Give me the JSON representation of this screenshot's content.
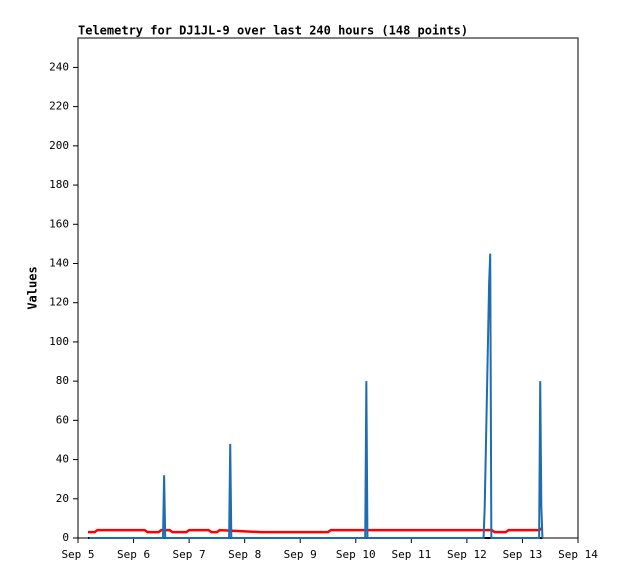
{
  "chart_data": {
    "type": "line",
    "title": "Telemetry for DJ1JL-9 over last 240 hours (148 points)",
    "ylabel": "Values",
    "xlim": [
      5,
      14
    ],
    "ylim": [
      0,
      255
    ],
    "xticks": [
      {
        "value": 5,
        "label": "Sep 5"
      },
      {
        "value": 6,
        "label": "Sep 6"
      },
      {
        "value": 7,
        "label": "Sep 7"
      },
      {
        "value": 8,
        "label": "Sep 8"
      },
      {
        "value": 9,
        "label": "Sep 9"
      },
      {
        "value": 10,
        "label": "Sep 10"
      },
      {
        "value": 11,
        "label": "Sep 11"
      },
      {
        "value": 12,
        "label": "Sep 12"
      },
      {
        "value": 13,
        "label": "Sep 13"
      },
      {
        "value": 14,
        "label": "Sep 14"
      }
    ],
    "yticks": [
      0,
      20,
      40,
      60,
      80,
      100,
      120,
      140,
      160,
      180,
      200,
      220,
      240
    ],
    "series": [
      {
        "color": "#000000",
        "x": [
          5.18,
          13.36
        ],
        "values": [
          0,
          0
        ]
      },
      {
        "color": "#ff0000",
        "x": [
          5.18,
          5.3,
          5.35,
          6.2,
          6.25,
          6.45,
          6.5,
          6.65,
          6.7,
          6.95,
          7.0,
          7.35,
          7.4,
          7.5,
          7.55,
          8.3,
          8.35,
          9.5,
          9.55,
          12.45,
          12.5,
          12.7,
          12.75,
          13.3,
          13.35
        ],
        "values": [
          3,
          3,
          4,
          4,
          3,
          3,
          4,
          4,
          3,
          3,
          4,
          4,
          3,
          3,
          4,
          3,
          3,
          3,
          4,
          4,
          3,
          3,
          4,
          4,
          5
        ]
      },
      {
        "color": "#1f6cb0",
        "x": [
          5.2,
          6.53,
          6.55,
          6.57,
          7.72,
          7.74,
          7.76,
          10.17,
          10.19,
          10.21,
          12.3,
          12.32,
          12.34,
          12.36,
          12.38,
          12.4,
          12.42,
          12.44,
          13.3,
          13.32,
          13.34,
          13.36
        ],
        "values": [
          0,
          0,
          32,
          0,
          0,
          48,
          0,
          0,
          80,
          0,
          0,
          15,
          43,
          72,
          101,
          130,
          145,
          0,
          0,
          80,
          16,
          0
        ]
      }
    ]
  }
}
